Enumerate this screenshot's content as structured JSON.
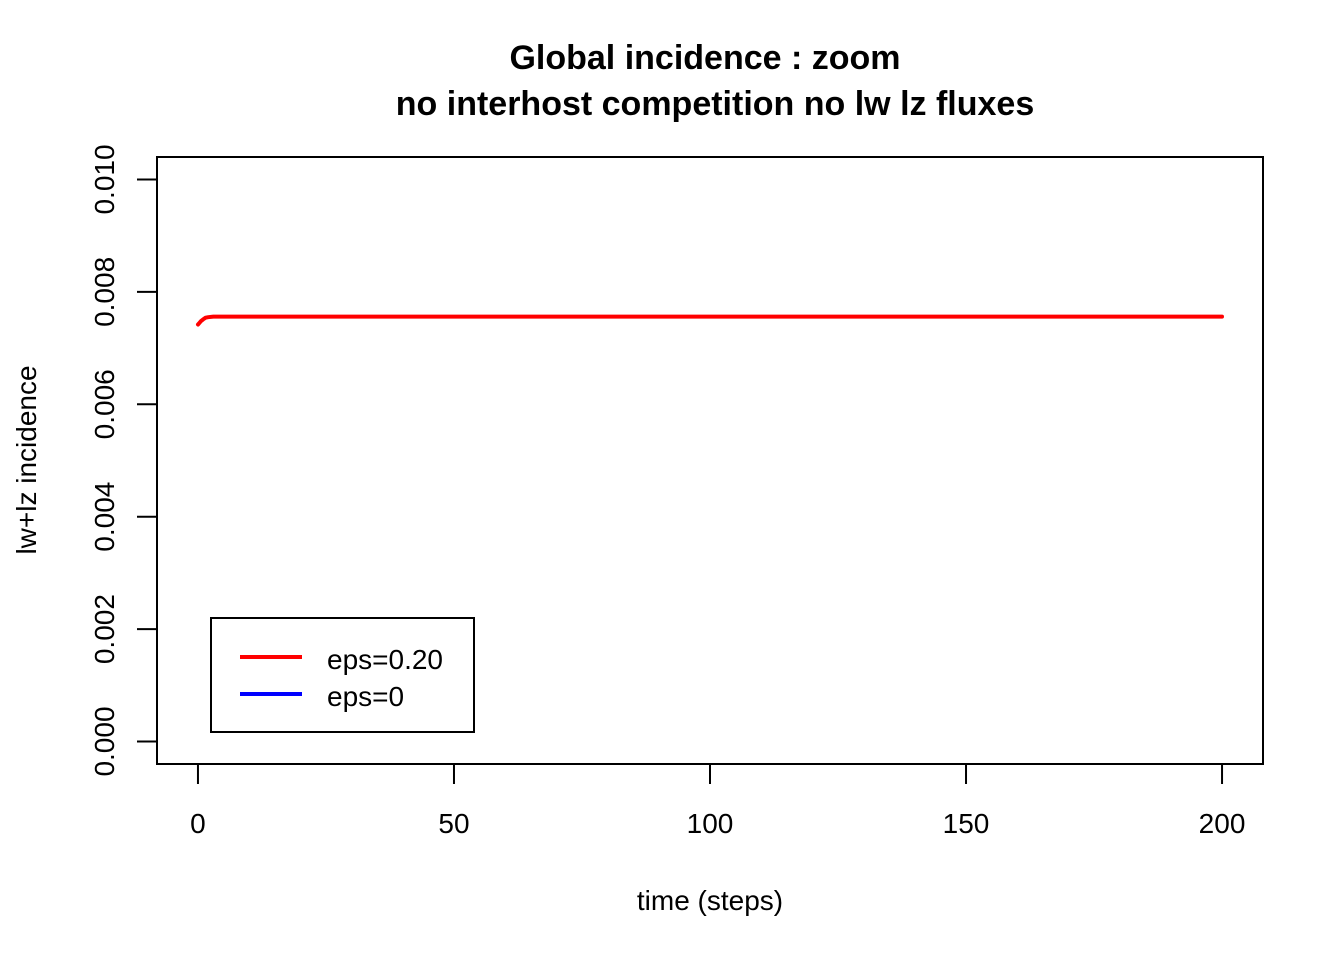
{
  "chart_data": {
    "type": "line",
    "title_line1": "Global incidence : zoom",
    "title_line2": "no interhost competition no lw lz fluxes",
    "xlabel": "time (steps)",
    "ylabel": "lw+lz incidence",
    "xlim": [
      -8,
      208
    ],
    "ylim": [
      -0.0004,
      0.0104
    ],
    "x_ticks": [
      0,
      50,
      100,
      150,
      200
    ],
    "x_tick_labels": [
      "0",
      "50",
      "100",
      "150",
      "200"
    ],
    "y_ticks": [
      0.0,
      0.002,
      0.004,
      0.006,
      0.008,
      0.01
    ],
    "y_tick_labels": [
      "0.000",
      "0.002",
      "0.004",
      "0.006",
      "0.008",
      "0.010"
    ],
    "grid": false,
    "legend_position": "bottom-left",
    "series": [
      {
        "name": "eps=0.20",
        "color": "#ff0000",
        "x": [
          0,
          0.3,
          0.6,
          1,
          1.5,
          2,
          3,
          5,
          10,
          50,
          100,
          150,
          200
        ],
        "values": [
          0.00742,
          0.00745,
          0.00748,
          0.00751,
          0.00754,
          0.00755,
          0.00756,
          0.00756,
          0.00756,
          0.00756,
          0.00756,
          0.00756,
          0.00756
        ]
      },
      {
        "name": "eps=0",
        "color": "#0000ff",
        "x": [],
        "values": []
      }
    ]
  }
}
